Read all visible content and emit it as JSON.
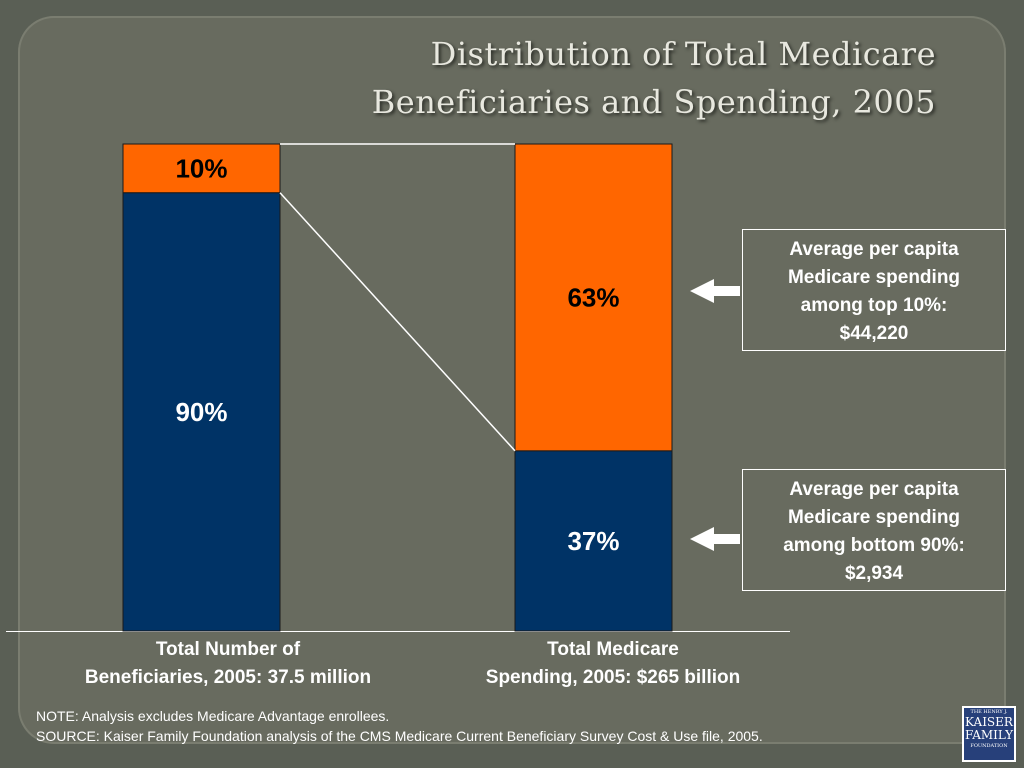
{
  "title": {
    "line1": "Distribution of Total Medicare",
    "line2": "Beneficiaries and Spending, 2005"
  },
  "colors": {
    "navy": "#003366",
    "orange": "#ff6600",
    "background": "#686b5f"
  },
  "chart_data": {
    "type": "bar",
    "stacked": true,
    "ylim": [
      0,
      100
    ],
    "categories": [
      [
        "Total Number of",
        "Beneficiaries, 2005: 37.5 million"
      ],
      [
        "Total Medicare",
        "Spending, 2005: $265 billion"
      ]
    ],
    "series": [
      {
        "values": [
          90,
          37
        ],
        "labels": [
          "90%",
          "37%"
        ],
        "color": "#003366"
      },
      {
        "values": [
          10,
          63
        ],
        "labels": [
          "10%",
          "63%"
        ],
        "color": "#ff6600"
      }
    ],
    "grid": false
  },
  "callouts": {
    "top": [
      "Average per capita",
      "Medicare spending",
      "among top 10%:",
      "$44,220"
    ],
    "bottom": [
      "Average per capita",
      "Medicare spending",
      "among bottom 90%:",
      "$2,934"
    ]
  },
  "notes": {
    "note": "NOTE: Analysis excludes Medicare Advantage enrollees.",
    "source": "SOURCE: Kaiser Family Foundation analysis of the CMS Medicare Current Beneficiary Survey Cost & Use file, 2005."
  },
  "logo": {
    "text": [
      "THE HENRY J.",
      "KAISER",
      "FAMILY",
      "FOUNDATION"
    ]
  }
}
